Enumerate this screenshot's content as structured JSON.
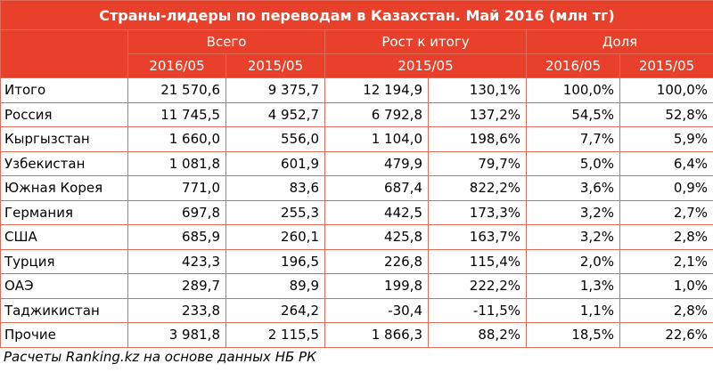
{
  "title": "Страны-лидеры по переводам в Казахстан. Май 2016 (млн тг)",
  "headers": {
    "group": [
      "Всего",
      "Рост к итогу",
      "Доля"
    ],
    "sub": [
      "2016/05",
      "2015/05",
      "2015/05",
      "2016/05",
      "2015/05"
    ]
  },
  "rows": [
    [
      "Итого",
      "21 570,6",
      "9 375,7",
      "12 194,9",
      "130,1%",
      "100,0%",
      "100,0%"
    ],
    [
      "Россия",
      "11 745,5",
      "4 952,7",
      "6 792,8",
      "137,2%",
      "54,5%",
      "52,8%"
    ],
    [
      "Кыргызстан",
      "1 660,0",
      "556,0",
      "1 104,0",
      "198,6%",
      "7,7%",
      "5,9%"
    ],
    [
      "Узбекистан",
      "1 081,8",
      "601,9",
      "479,9",
      "79,7%",
      "5,0%",
      "6,4%"
    ],
    [
      "Южная Корея",
      "771,0",
      "83,6",
      "687,4",
      "822,2%",
      "3,6%",
      "0,9%"
    ],
    [
      "Германия",
      "697,8",
      "255,3",
      "442,5",
      "173,3%",
      "3,2%",
      "2,7%"
    ],
    [
      "США",
      "685,9",
      "260,1",
      "425,8",
      "163,7%",
      "3,2%",
      "2,8%"
    ],
    [
      "Турция",
      "423,3",
      "196,5",
      "226,8",
      "115,4%",
      "2,0%",
      "2,1%"
    ],
    [
      "ОАЭ",
      "289,7",
      "89,9",
      "199,8",
      "222,2%",
      "1,3%",
      "1,0%"
    ],
    [
      "Таджикистан",
      "233,8",
      "264,2",
      "-30,4",
      "-11,5%",
      "1,1%",
      "2,8%"
    ],
    [
      "Прочие",
      "3 981,8",
      "2 115,5",
      "1 866,3",
      "88,2%",
      "18,5%",
      "22,6%"
    ]
  ],
  "footer": "Расчеты Ranking.kz на основе данных НБ РК"
}
